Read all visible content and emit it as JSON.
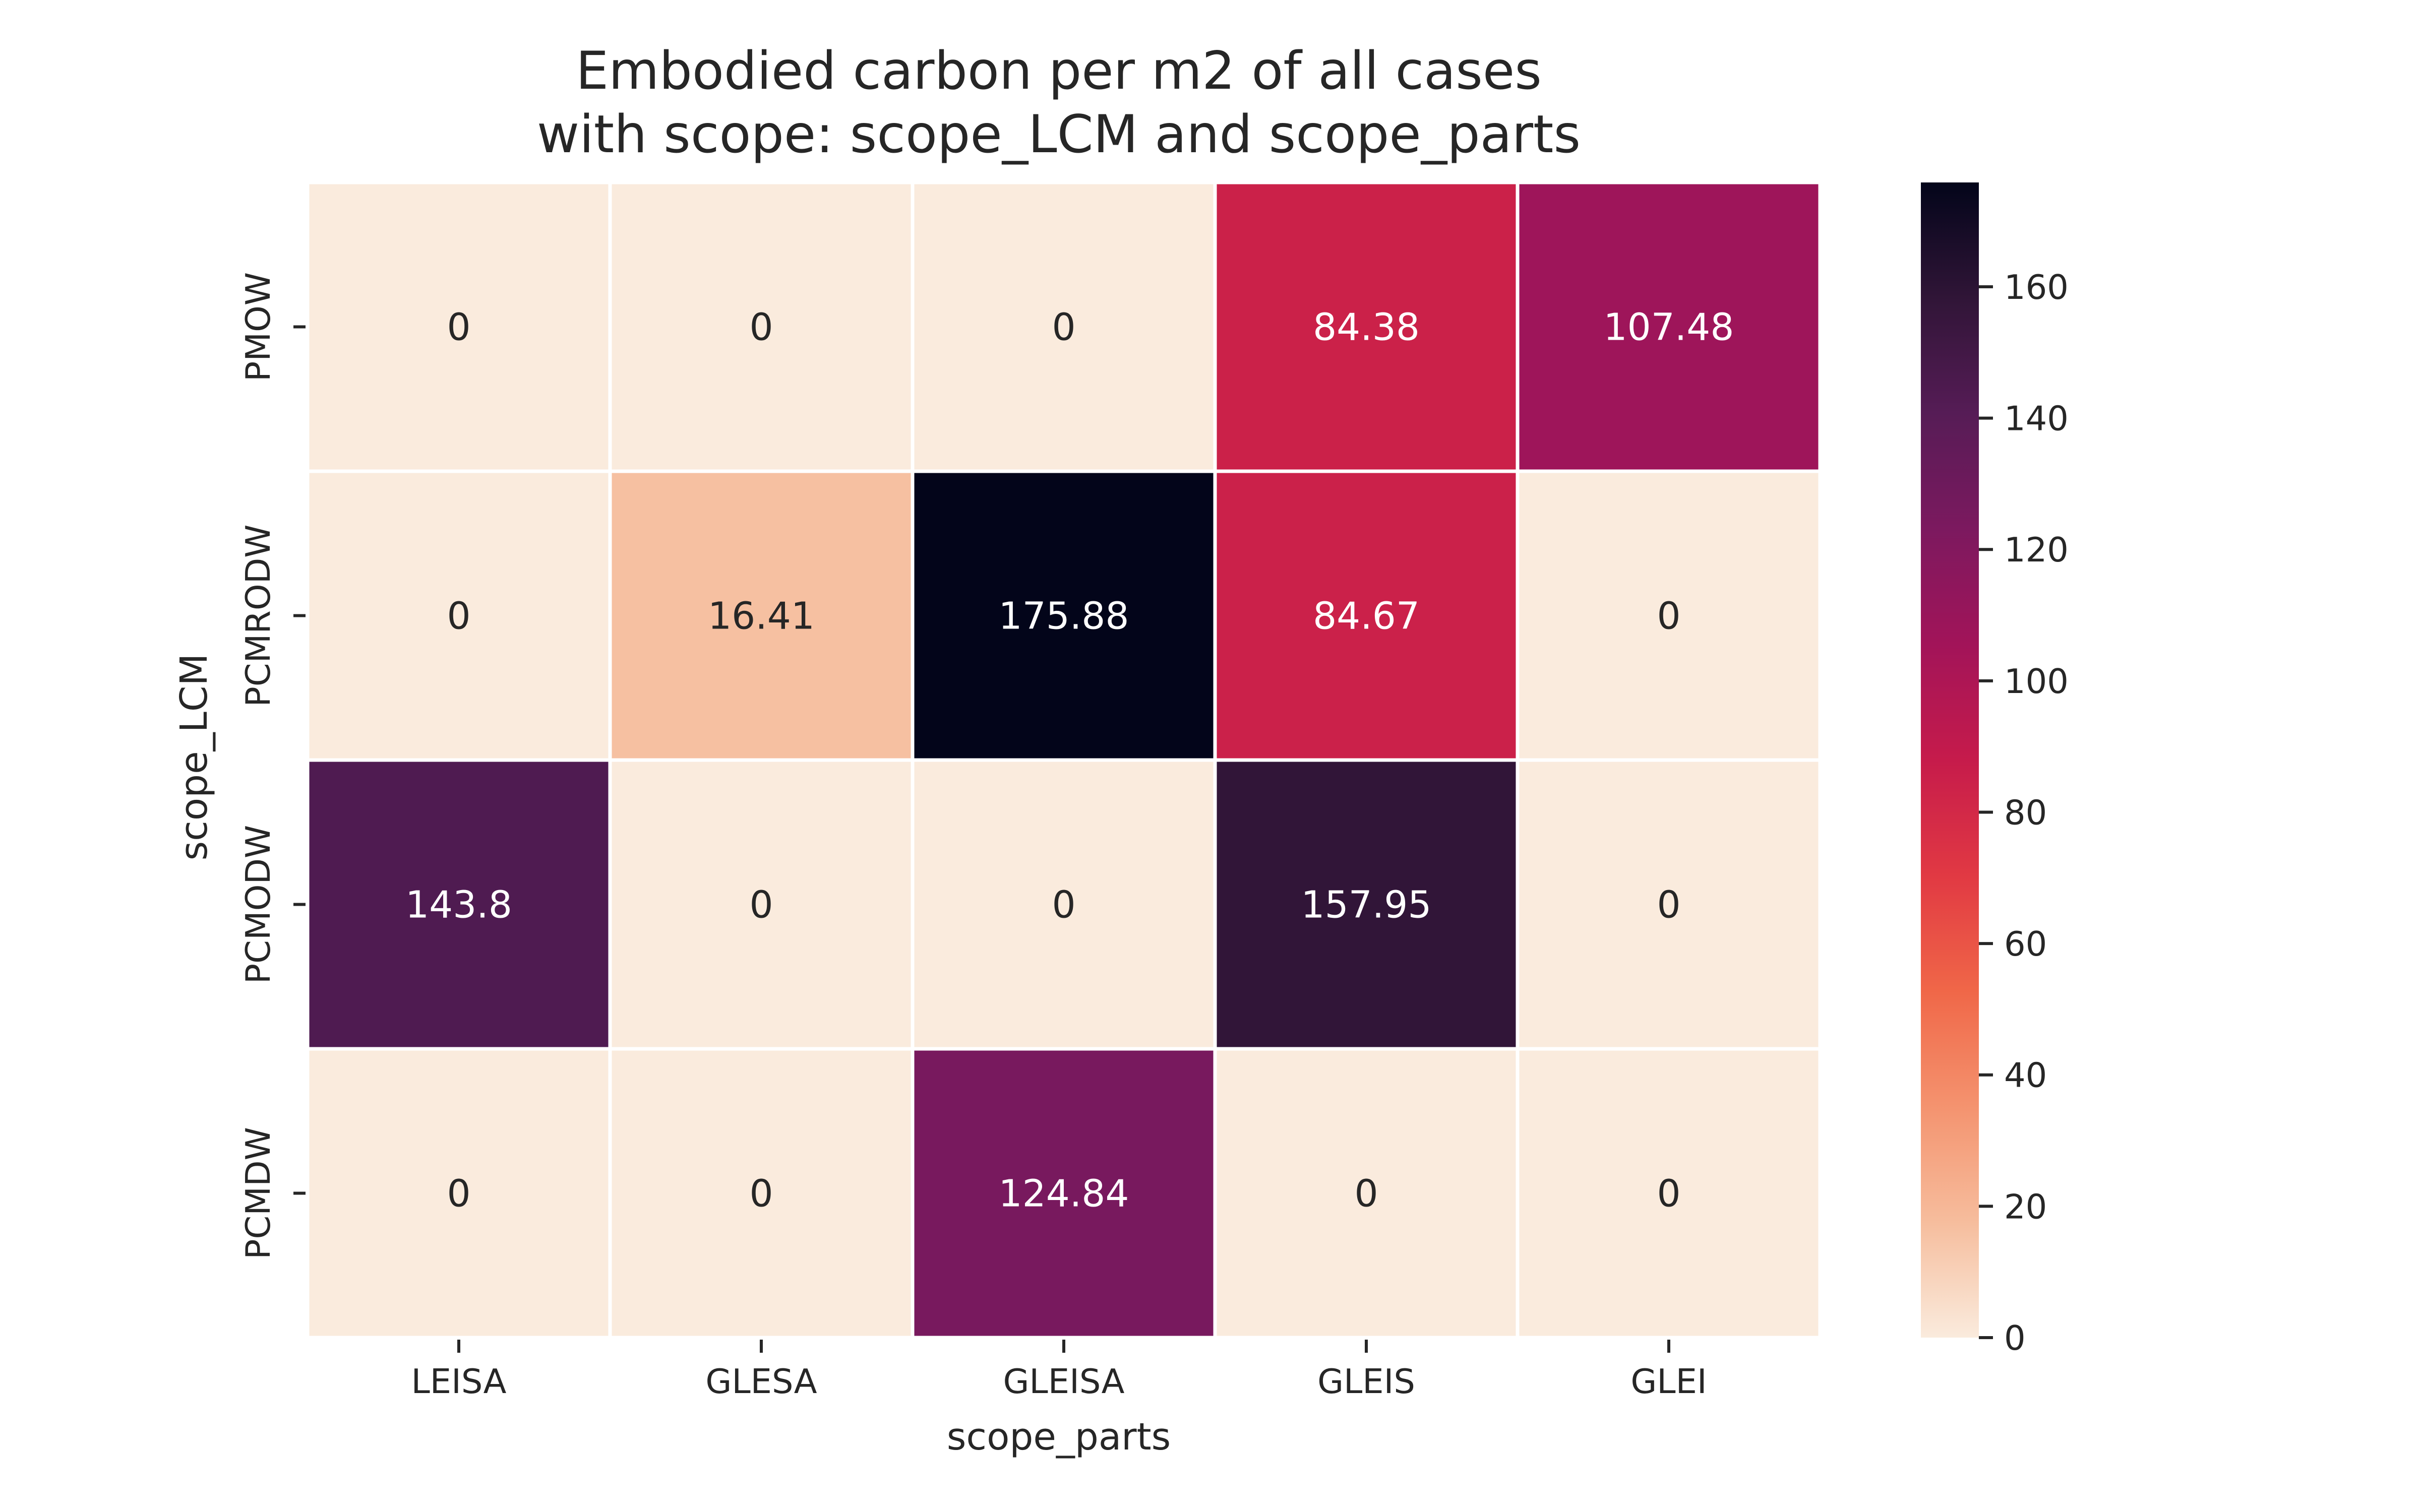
{
  "chart_data": {
    "type": "heatmap",
    "title_lines": [
      "Embodied carbon per m2 of all cases",
      "with scope: scope_LCM and scope_parts"
    ],
    "xlabel": "scope_parts",
    "ylabel": "scope_LCM",
    "x_categories": [
      "LEISA",
      "GLESA",
      "GLEISA",
      "GLEIS",
      "GLEI"
    ],
    "y_categories": [
      "PMOW",
      "PCMRODW",
      "PCMODW",
      "PCMDW"
    ],
    "values": [
      [
        0,
        0,
        0,
        84.38,
        107.48
      ],
      [
        0,
        16.41,
        175.88,
        84.67,
        0
      ],
      [
        143.8,
        0,
        0,
        157.95,
        0
      ],
      [
        0,
        0,
        124.84,
        0,
        0
      ]
    ],
    "value_labels": [
      [
        "0",
        "0",
        "0",
        "84.38",
        "107.48"
      ],
      [
        "0",
        "16.41",
        "175.88",
        "84.67",
        "0"
      ],
      [
        "143.8",
        "0",
        "0",
        "157.95",
        "0"
      ],
      [
        "0",
        "0",
        "124.84",
        "0",
        "0"
      ]
    ],
    "colorbar": {
      "min": 0,
      "max": 175.88,
      "ticks": [
        0,
        20,
        40,
        60,
        80,
        100,
        120,
        140,
        160
      ],
      "colormap": "rocket_r"
    },
    "grid": false,
    "annotations_shown": true
  }
}
